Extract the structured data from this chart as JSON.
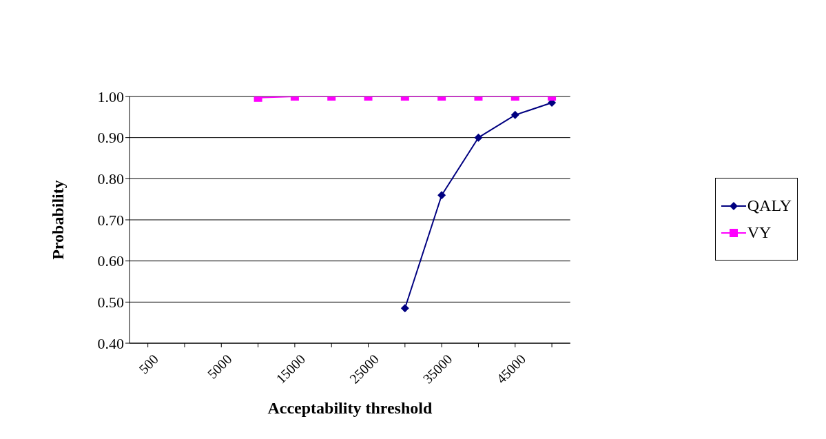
{
  "chart_data": {
    "type": "line",
    "xlabel": "Acceptability threshold",
    "ylabel": "Probability",
    "categories": [
      "500",
      null,
      "5000",
      null,
      "15000",
      null,
      "25000",
      null,
      "35000",
      null,
      "45000",
      null
    ],
    "series": [
      {
        "name": "QALY",
        "color": "#000080",
        "marker": "diamond",
        "values": [
          null,
          null,
          null,
          null,
          null,
          null,
          null,
          0.485,
          0.76,
          0.9,
          0.955,
          0.985
        ]
      },
      {
        "name": "VY",
        "color": "#ff00ff",
        "marker": "square",
        "values": [
          null,
          null,
          null,
          0.997,
          1.0,
          1.0,
          1.0,
          1.0,
          1.0,
          1.0,
          1.0,
          1.0
        ]
      }
    ],
    "ylim": [
      0.4,
      1.0
    ],
    "yticks": [
      {
        "value": 0.4,
        "label": "0.40"
      },
      {
        "value": 0.5,
        "label": "0.50"
      },
      {
        "value": 0.6,
        "label": "0.60"
      },
      {
        "value": 0.7,
        "label": "0.70"
      },
      {
        "value": 0.8,
        "label": "0.80"
      },
      {
        "value": 0.9,
        "label": "0.90"
      },
      {
        "value": 1.0,
        "label": "1.00"
      }
    ],
    "grid": "y",
    "legend": "right",
    "line_style": "solid"
  }
}
